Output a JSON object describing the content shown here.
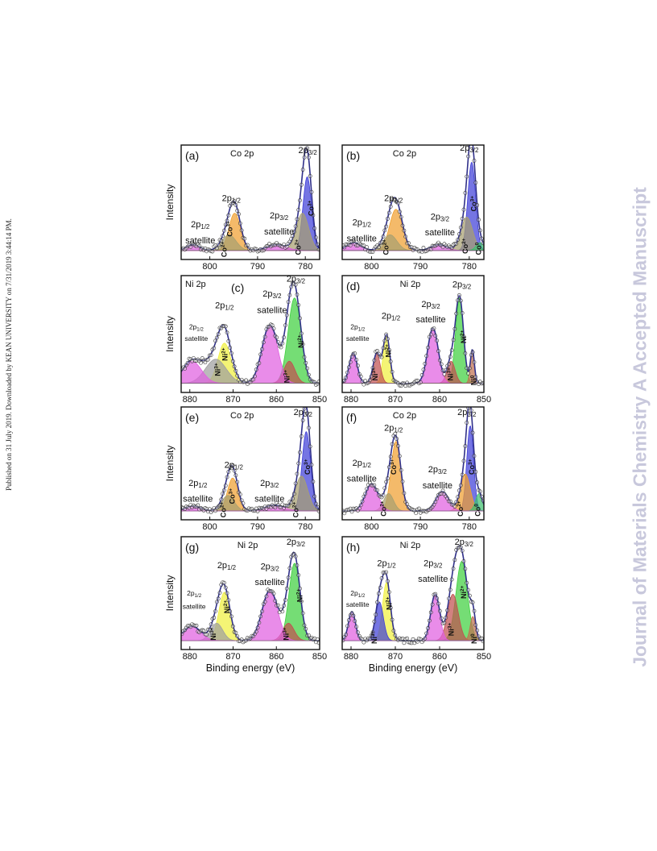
{
  "margin_note": "Published on 31 July 2019. Downloaded by KEAN UNIVERSITY on 7/31/2019 3:44:14 PM.",
  "watermark": "Journal of Materials Chemistry A Accepted Manuscript",
  "xlabel": "Binding energy (eV)",
  "ylabel": "Intensity",
  "colors": {
    "co3": "#4040d8",
    "co2": "#a8a070",
    "co2p12": "#f0a030",
    "co0": "#40c070",
    "sat": "#e060e0",
    "ni2": "#40d040",
    "ni3": "#c05050",
    "ni0": "#c07050",
    "ni2p12": "#f0f040",
    "ni3p12": "#a0a0a0",
    "envelope": "#30308a"
  },
  "chart_data": [
    {
      "panel": "(a)",
      "type": "line",
      "element": "Co 2p",
      "xlim": [
        806,
        777
      ],
      "reversed": true,
      "xticks": [
        800,
        790,
        780
      ],
      "labels": [
        {
          "text": "2p",
          "sub": "3/2",
          "x": 779.5,
          "y": 0.93
        },
        {
          "text": "2p",
          "sub": "1/2",
          "x": 795.5,
          "y": 0.51
        },
        {
          "text": "2p",
          "sub": "3/2",
          "x": 785.5,
          "y": 0.36
        },
        {
          "text": "satellite",
          "x": 785.5,
          "y": 0.22
        },
        {
          "text": "2p",
          "sub": "1/2",
          "x": 802,
          "y": 0.28
        },
        {
          "text": "satellite",
          "x": 802,
          "y": 0.14
        }
      ],
      "ion_labels": [
        {
          "text": "Co",
          "sup": "3+",
          "x": 778.3,
          "y": 0.38
        },
        {
          "text": "Co",
          "sup": "2+",
          "x": 781,
          "y": 0.04
        },
        {
          "text": "Co",
          "sup": "3+",
          "x": 795.3,
          "y": 0.2
        },
        {
          "text": "Co",
          "sup": "2+",
          "x": 796.5,
          "y": 0.02
        }
      ],
      "peaks": [
        {
          "name": "Co3+",
          "center": 779.6,
          "height": 0.75,
          "width": 0.9,
          "color": "co3"
        },
        {
          "name": "Co2+",
          "center": 780.6,
          "height": 0.38,
          "width": 1.3,
          "color": "co2"
        },
        {
          "name": "Co3+",
          "center": 794.8,
          "height": 0.38,
          "width": 1.2,
          "color": "co2p12"
        },
        {
          "name": "Co2+",
          "center": 796.0,
          "height": 0.16,
          "width": 1.5,
          "color": "co2"
        },
        {
          "name": "sat",
          "center": 786.0,
          "height": 0.06,
          "width": 2.0,
          "color": "sat"
        },
        {
          "name": "sat",
          "center": 803.5,
          "height": 0.06,
          "width": 1.4,
          "color": "sat"
        }
      ]
    },
    {
      "panel": "(b)",
      "type": "line",
      "element": "Co 2p",
      "xlim": [
        806,
        777
      ],
      "reversed": true,
      "xticks": [
        800,
        790,
        780
      ],
      "labels": [
        {
          "text": "2p",
          "sub": "3/2",
          "x": 780,
          "y": 0.95
        },
        {
          "text": "2p",
          "sub": "1/2",
          "x": 795.5,
          "y": 0.51
        },
        {
          "text": "2p",
          "sub": "3/2",
          "x": 786,
          "y": 0.35
        },
        {
          "text": "satellite",
          "x": 786,
          "y": 0.21
        },
        {
          "text": "2p",
          "sub": "1/2",
          "x": 802,
          "y": 0.3
        },
        {
          "text": "satellite",
          "x": 802,
          "y": 0.16
        }
      ],
      "ion_labels": [
        {
          "text": "Co",
          "sup": "3+",
          "x": 778.6,
          "y": 0.42
        },
        {
          "text": "Co",
          "sup": "2+",
          "x": 780.3,
          "y": 0.05
        },
        {
          "text": "Co",
          "sup": "2+",
          "x": 796.5,
          "y": 0.04
        },
        {
          "text": "Co",
          "sup": "0",
          "x": 777.6,
          "y": 0.04
        }
      ],
      "peaks": [
        {
          "name": "Co3+",
          "center": 779.5,
          "height": 0.9,
          "width": 0.8,
          "color": "co3"
        },
        {
          "name": "Co2+",
          "center": 780.5,
          "height": 0.34,
          "width": 1.2,
          "color": "co2"
        },
        {
          "name": "Co3+",
          "center": 795.0,
          "height": 0.42,
          "width": 1.3,
          "color": "co2p12"
        },
        {
          "name": "Co2+",
          "center": 796.2,
          "height": 0.16,
          "width": 1.4,
          "color": "co2"
        },
        {
          "name": "Co0",
          "center": 777.8,
          "height": 0.08,
          "width": 0.8,
          "color": "co0"
        },
        {
          "name": "sat",
          "center": 786.2,
          "height": 0.06,
          "width": 1.6,
          "color": "sat"
        },
        {
          "name": "sat",
          "center": 803.6,
          "height": 0.08,
          "width": 1.5,
          "color": "sat"
        }
      ]
    },
    {
      "panel": "(c)",
      "type": "line",
      "element": "Ni 2p",
      "xlim": [
        882,
        850
      ],
      "reversed": true,
      "xticks": [
        880,
        870,
        860,
        850
      ],
      "labels": [
        {
          "text": "2p",
          "sub": "3/2",
          "x": 855.5,
          "y": 0.95
        },
        {
          "text": "2p",
          "sub": "1/2",
          "x": 872,
          "y": 0.72
        },
        {
          "text": "2p",
          "sub": "3/2",
          "x": 861,
          "y": 0.82
        },
        {
          "text": "satellite",
          "x": 861,
          "y": 0.68
        },
        {
          "text": "2p",
          "sub": "1/2",
          "x": 878.5,
          "y": 0.54,
          "small": true
        },
        {
          "text": "satellite",
          "x": 878.5,
          "y": 0.44,
          "small": true
        }
      ],
      "ion_labels": [
        {
          "text": "Ni",
          "sup": "2+",
          "x": 853.7,
          "y": 0.38
        },
        {
          "text": "Ni",
          "sup": "2+",
          "x": 871.3,
          "y": 0.27
        },
        {
          "text": "Ni",
          "sup": "3+",
          "x": 873,
          "y": 0.14
        },
        {
          "text": "Ni",
          "sup": "3+",
          "x": 857,
          "y": 0.08
        }
      ],
      "peaks": [
        {
          "name": "Ni2+",
          "center": 855.8,
          "height": 0.85,
          "width": 1.5,
          "color": "ni2"
        },
        {
          "name": "Ni3+",
          "center": 857.0,
          "height": 0.22,
          "width": 1.3,
          "color": "ni3"
        },
        {
          "name": "sat",
          "center": 861.5,
          "height": 0.58,
          "width": 1.8,
          "color": "sat"
        },
        {
          "name": "Ni2+",
          "center": 872.0,
          "height": 0.4,
          "width": 1.5,
          "color": "ni2p12"
        },
        {
          "name": "Ni3+",
          "center": 874.0,
          "height": 0.24,
          "width": 2.4,
          "color": "ni3p12"
        },
        {
          "name": "sat",
          "center": 879.5,
          "height": 0.22,
          "width": 2.2,
          "color": "sat"
        }
      ]
    },
    {
      "panel": "(d)",
      "type": "line",
      "element": "Ni 2p",
      "xlim": [
        882,
        850
      ],
      "reversed": true,
      "xticks": [
        880,
        870,
        860,
        850
      ],
      "labels": [
        {
          "text": "2p",
          "sub": "3/2",
          "x": 855,
          "y": 0.9
        },
        {
          "text": "2p",
          "sub": "1/2",
          "x": 871,
          "y": 0.63
        },
        {
          "text": "2p",
          "sub": "3/2",
          "x": 862,
          "y": 0.73
        },
        {
          "text": "satellite",
          "x": 862,
          "y": 0.6
        },
        {
          "text": "2p",
          "sub": "1/2",
          "x": 878.5,
          "y": 0.54,
          "small": true
        },
        {
          "text": "satellite",
          "x": 878.5,
          "y": 0.44,
          "small": true
        }
      ],
      "ion_labels": [
        {
          "text": "Ni",
          "sup": "2+",
          "x": 854,
          "y": 0.42
        },
        {
          "text": "Ni",
          "sup": "2+",
          "x": 871,
          "y": 0.3
        },
        {
          "text": "Ni",
          "sup": "3+",
          "x": 857,
          "y": 0.1
        },
        {
          "text": "Ni",
          "sup": "3+",
          "x": 874,
          "y": 0.1
        },
        {
          "text": "Ni",
          "sup": "0",
          "x": 851.7,
          "y": 0.06
        }
      ],
      "peaks": [
        {
          "name": "Ni2+",
          "center": 855.5,
          "height": 0.85,
          "width": 0.9,
          "color": "ni2"
        },
        {
          "name": "Ni3+",
          "center": 857.4,
          "height": 0.22,
          "width": 0.9,
          "color": "ni3"
        },
        {
          "name": "Ni0",
          "center": 852.6,
          "height": 0.33,
          "width": 0.45,
          "color": "ni0"
        },
        {
          "name": "sat",
          "center": 861.5,
          "height": 0.55,
          "width": 1.2,
          "color": "sat"
        },
        {
          "name": "Ni2+",
          "center": 872.0,
          "height": 0.48,
          "width": 0.75,
          "color": "ni2p12"
        },
        {
          "name": "Ni3+",
          "center": 874.2,
          "height": 0.3,
          "width": 0.8,
          "color": "ni3"
        },
        {
          "name": "sat",
          "center": 879.5,
          "height": 0.3,
          "width": 0.9,
          "color": "sat"
        }
      ]
    },
    {
      "panel": "(e)",
      "type": "line",
      "element": "Co 2p",
      "xlim": [
        806,
        777
      ],
      "reversed": true,
      "xticks": [
        800,
        790,
        780
      ],
      "labels": [
        {
          "text": "2p",
          "sub": "3/2",
          "x": 780.5,
          "y": 0.93
        },
        {
          "text": "2p",
          "sub": "1/2",
          "x": 795,
          "y": 0.46
        },
        {
          "text": "2p",
          "sub": "3/2",
          "x": 787.5,
          "y": 0.3
        },
        {
          "text": "satellite",
          "x": 787.5,
          "y": 0.16
        },
        {
          "text": "2p",
          "sub": "1/2",
          "x": 802.5,
          "y": 0.3
        },
        {
          "text": "satellite",
          "x": 802.5,
          "y": 0.16
        }
      ],
      "ion_labels": [
        {
          "text": "Co",
          "sup": "3+",
          "x": 779,
          "y": 0.4
        },
        {
          "text": "Co",
          "sup": "2+",
          "x": 781.5,
          "y": 0.02
        },
        {
          "text": "Co",
          "sup": "3+",
          "x": 794.8,
          "y": 0.14
        },
        {
          "text": "Co",
          "sup": "2+",
          "x": 796.6,
          "y": 0.02
        }
      ],
      "peaks": [
        {
          "name": "Co3+",
          "center": 779.8,
          "height": 0.82,
          "width": 0.9,
          "color": "co3"
        },
        {
          "name": "Co2+",
          "center": 780.8,
          "height": 0.36,
          "width": 1.3,
          "color": "co2"
        },
        {
          "name": "Co3+",
          "center": 795.2,
          "height": 0.34,
          "width": 1.1,
          "color": "co2p12"
        },
        {
          "name": "Co2+",
          "center": 796.2,
          "height": 0.16,
          "width": 1.3,
          "color": "co2"
        },
        {
          "name": "sat",
          "center": 786.5,
          "height": 0.06,
          "width": 2.0,
          "color": "sat"
        },
        {
          "name": "sat",
          "center": 803.5,
          "height": 0.05,
          "width": 1.6,
          "color": "sat"
        }
      ]
    },
    {
      "panel": "(f)",
      "type": "line",
      "element": "Co 2p",
      "xlim": [
        806,
        777
      ],
      "reversed": true,
      "xticks": [
        800,
        790,
        780
      ],
      "labels": [
        {
          "text": "2p",
          "sub": "3/2",
          "x": 780.5,
          "y": 0.93
        },
        {
          "text": "2p",
          "sub": "1/2",
          "x": 795.5,
          "y": 0.79
        },
        {
          "text": "2p",
          "sub": "3/2",
          "x": 786.5,
          "y": 0.42
        },
        {
          "text": "satellite",
          "x": 786.5,
          "y": 0.28
        },
        {
          "text": "2p",
          "sub": "1/2",
          "x": 802,
          "y": 0.48
        },
        {
          "text": "satellite",
          "x": 802,
          "y": 0.34
        }
      ],
      "ion_labels": [
        {
          "text": "Co",
          "sup": "3+",
          "x": 779,
          "y": 0.4
        },
        {
          "text": "Co",
          "sup": "3+",
          "x": 795,
          "y": 0.4
        },
        {
          "text": "Co",
          "sup": "2+",
          "x": 781.3,
          "y": 0.03
        },
        {
          "text": "Co",
          "sup": "2+",
          "x": 797,
          "y": 0.03
        },
        {
          "text": "Co",
          "sup": "0",
          "x": 777.7,
          "y": 0.03
        }
      ],
      "peaks": [
        {
          "name": "Co3+",
          "center": 779.8,
          "height": 0.88,
          "width": 0.7,
          "color": "co3"
        },
        {
          "name": "Co2+",
          "center": 780.8,
          "height": 0.38,
          "width": 1.0,
          "color": "co2p12"
        },
        {
          "name": "Co3+",
          "center": 795.0,
          "height": 0.72,
          "width": 1.0,
          "color": "co2p12"
        },
        {
          "name": "Co2+",
          "center": 796.5,
          "height": 0.18,
          "width": 1.0,
          "color": "co2"
        },
        {
          "name": "Co0",
          "center": 778.0,
          "height": 0.18,
          "width": 0.7,
          "color": "co0"
        },
        {
          "name": "sat",
          "center": 785.5,
          "height": 0.2,
          "width": 1.3,
          "color": "sat"
        },
        {
          "name": "sat",
          "center": 800.0,
          "height": 0.28,
          "width": 1.3,
          "color": "sat"
        }
      ]
    },
    {
      "panel": "(g)",
      "type": "line",
      "element": "Ni 2p",
      "xlim": [
        882,
        850
      ],
      "reversed": true,
      "xticks": [
        880,
        870,
        860,
        850
      ],
      "labels": [
        {
          "text": "2p",
          "sub": "3/2",
          "x": 855.5,
          "y": 0.93
        },
        {
          "text": "2p",
          "sub": "1/2",
          "x": 871.5,
          "y": 0.72
        },
        {
          "text": "2p",
          "sub": "3/2",
          "x": 861.5,
          "y": 0.71
        },
        {
          "text": "satellite",
          "x": 861.5,
          "y": 0.57
        },
        {
          "text": "2p",
          "sub": "1/2",
          "x": 879,
          "y": 0.48,
          "small": true
        },
        {
          "text": "satellite",
          "x": 879,
          "y": 0.36,
          "small": true
        }
      ],
      "ion_labels": [
        {
          "text": "Ni",
          "sup": "2+",
          "x": 854,
          "y": 0.42
        },
        {
          "text": "Ni",
          "sup": "2+",
          "x": 870.8,
          "y": 0.32
        },
        {
          "text": "Ni",
          "sup": "3+",
          "x": 874,
          "y": 0.08
        },
        {
          "text": "Ni",
          "sup": "3+",
          "x": 857.2,
          "y": 0.08
        }
      ],
      "peaks": [
        {
          "name": "Ni2+",
          "center": 855.8,
          "height": 0.8,
          "width": 1.3,
          "color": "ni2"
        },
        {
          "name": "Ni3+",
          "center": 857.2,
          "height": 0.18,
          "width": 1.3,
          "color": "ni3"
        },
        {
          "name": "sat",
          "center": 861.5,
          "height": 0.52,
          "width": 1.8,
          "color": "sat"
        },
        {
          "name": "Ni2+",
          "center": 872.0,
          "height": 0.5,
          "width": 1.3,
          "color": "ni2p12"
        },
        {
          "name": "Ni3+",
          "center": 873.8,
          "height": 0.18,
          "width": 1.4,
          "color": "ni3p12"
        },
        {
          "name": "sat",
          "center": 879.5,
          "height": 0.15,
          "width": 2.0,
          "color": "sat"
        }
      ]
    },
    {
      "panel": "(h)",
      "type": "line",
      "element": "Ni 2p",
      "xlim": [
        882,
        850
      ],
      "reversed": true,
      "xticks": [
        880,
        870,
        860,
        850
      ],
      "labels": [
        {
          "text": "2p",
          "sub": "3/2",
          "x": 854.5,
          "y": 0.93
        },
        {
          "text": "2p",
          "sub": "1/2",
          "x": 872,
          "y": 0.74
        },
        {
          "text": "2p",
          "sub": "3/2",
          "x": 861.5,
          "y": 0.74
        },
        {
          "text": "satellite",
          "x": 861.5,
          "y": 0.6
        },
        {
          "text": "2p",
          "sub": "1/2",
          "x": 878.5,
          "y": 0.48,
          "small": true
        },
        {
          "text": "satellite",
          "x": 878.5,
          "y": 0.38,
          "small": true
        }
      ],
      "ion_labels": [
        {
          "text": "Ni",
          "sup": "2+",
          "x": 854,
          "y": 0.45
        },
        {
          "text": "Ni",
          "sup": "2+",
          "x": 870.8,
          "y": 0.35
        },
        {
          "text": "Ni",
          "sup": "3+",
          "x": 856.8,
          "y": 0.12
        },
        {
          "text": "Ni",
          "sup": "3+",
          "x": 874.2,
          "y": 0.05
        },
        {
          "text": "Ni",
          "sup": "0",
          "x": 851.6,
          "y": 0.05
        }
      ],
      "peaks": [
        {
          "name": "Ni2+",
          "center": 855.0,
          "height": 0.82,
          "width": 1.3,
          "color": "ni2"
        },
        {
          "name": "Ni3+",
          "center": 857.0,
          "height": 0.48,
          "width": 1.2,
          "color": "ni3"
        },
        {
          "name": "Ni0",
          "center": 852.5,
          "height": 0.25,
          "width": 0.6,
          "color": "ni0"
        },
        {
          "name": "sat",
          "center": 861.0,
          "height": 0.48,
          "width": 1.0,
          "color": "sat"
        },
        {
          "name": "Ni2+",
          "center": 872.0,
          "height": 0.6,
          "width": 0.9,
          "color": "ni2p12"
        },
        {
          "name": "Ni3+",
          "center": 873.6,
          "height": 0.4,
          "width": 0.9,
          "color": "co3"
        },
        {
          "name": "sat",
          "center": 879.8,
          "height": 0.3,
          "width": 0.8,
          "color": "sat"
        }
      ]
    }
  ]
}
